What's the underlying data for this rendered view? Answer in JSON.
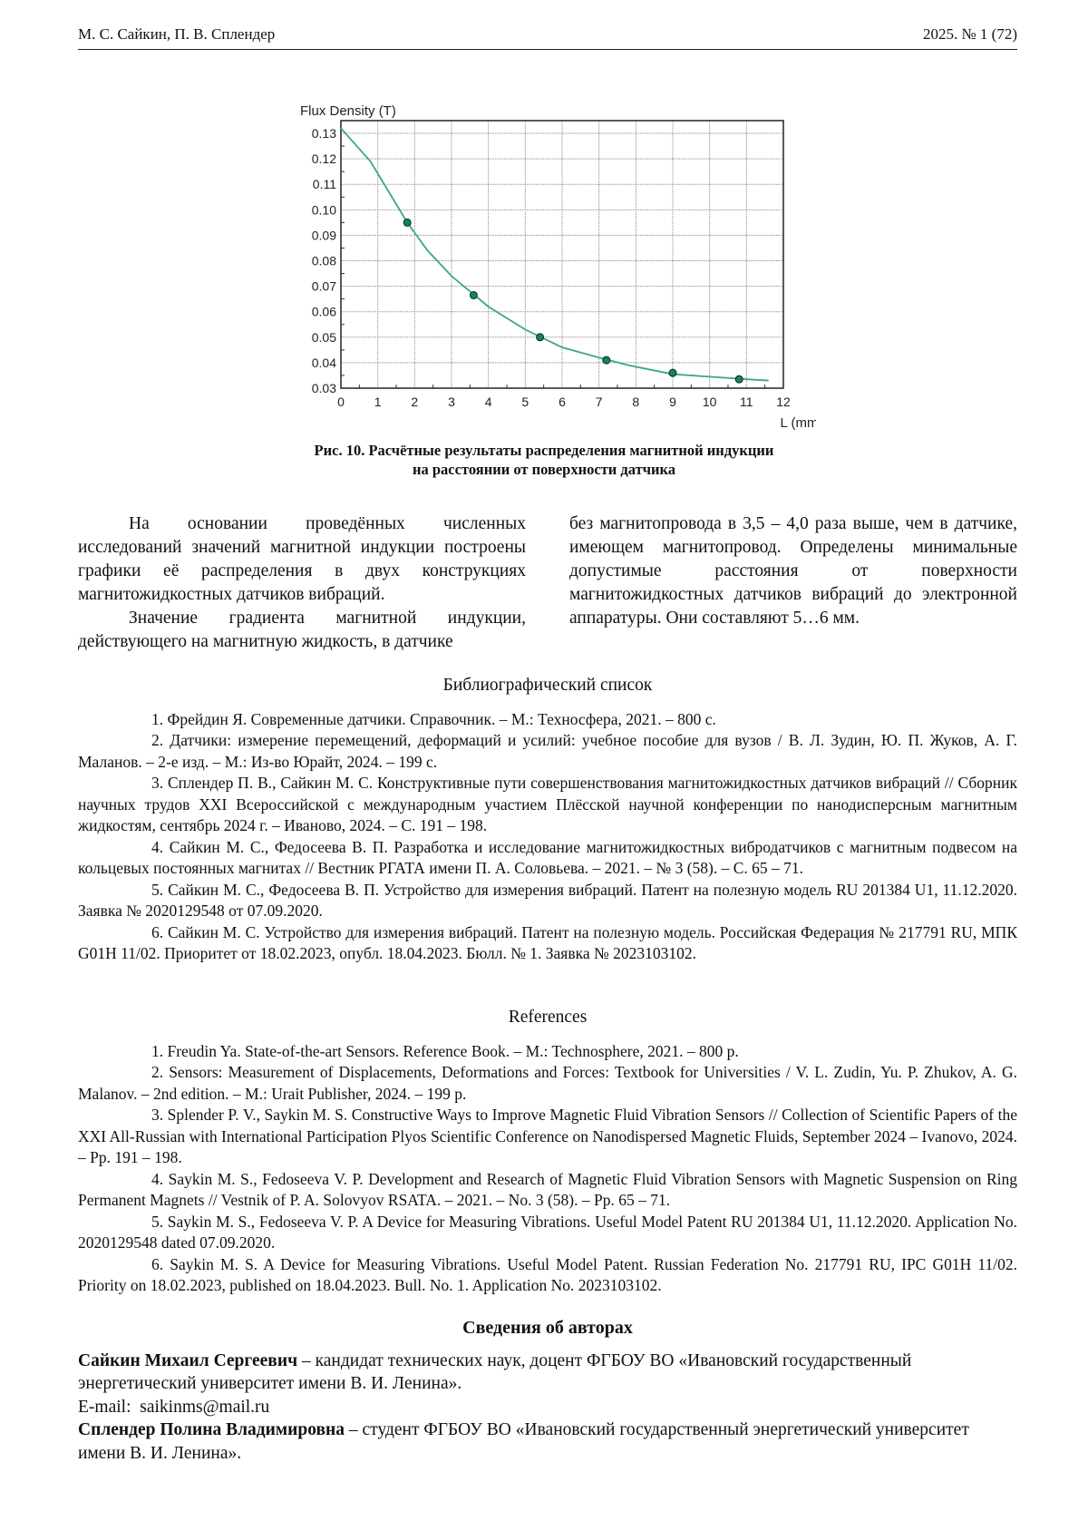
{
  "header": {
    "authors": "М. С. Сайкин,  П. В. Сплендер",
    "issue": "2025.   № 1 (72)"
  },
  "chart_data": {
    "type": "line",
    "title": "",
    "ylabel": "Flux Density (T)",
    "xlabel": "L (mm)",
    "xlim": [
      0,
      12
    ],
    "ylim": [
      0.03,
      0.135
    ],
    "xticks": [
      "0",
      "1",
      "2",
      "3",
      "4",
      "5",
      "6",
      "7",
      "8",
      "9",
      "10",
      "11",
      "12"
    ],
    "yticks": [
      "0.03",
      "0.04",
      "0.05",
      "0.06",
      "0.07",
      "0.08",
      "0.09",
      "0.10",
      "0.11",
      "0.12",
      "0.13"
    ],
    "grid": true,
    "line_color": "#3aaa78",
    "marker_color": "#0e8a4a",
    "series": [
      {
        "kind": "line",
        "x": [
          0,
          0.8,
          1.8,
          2.35,
          3.0,
          4.0,
          5.0,
          6.0,
          7.0,
          7.8,
          9.0,
          10.0,
          11.0,
          11.6
        ],
        "y": [
          0.132,
          0.119,
          0.095,
          0.084,
          0.074,
          0.062,
          0.053,
          0.046,
          0.042,
          0.039,
          0.0355,
          0.0345,
          0.0335,
          0.033
        ]
      },
      {
        "kind": "markers",
        "x": [
          1.8,
          3.6,
          5.4,
          7.2,
          9.0,
          10.8
        ],
        "y": [
          0.095,
          0.0665,
          0.05,
          0.041,
          0.036,
          0.0335
        ]
      }
    ]
  },
  "caption": {
    "line1": "Рис. 10. Расчётные результаты распределения магнитной индукции",
    "line2": "на расстоянии от поверхности датчика"
  },
  "body": {
    "p1": "На основании проведённых численных исследований значений магнитной индукции построены графики её распределения в двух конструкциях магнитожидкостных датчиков вибраций.",
    "p2": "Значение градиента магнитной индукции, действующего на магнитную жидкость, в датчике без магнитопровода в 3,5 – 4,0 раза выше, чем в датчике, имеющем магнитопровод. Определены минимальные допустимые расстояния от поверхности магнитожидкостных датчиков вибраций до электронной аппаратуры. Они составляют 5…6 мм.",
    "p2a": "Значение градиента магнитной индукции, действующего на магнитную жидкость, в датчике",
    "p2b": "без магнитопровода в 3,5 – 4,0 раза выше, чем в датчике, имеющем магнитопровод. Определены минимальные допустимые расстояния от поверхности магнитожидкостных датчиков вибраций до электронной аппаратуры. Они составляют 5…6 мм."
  },
  "bibliography": {
    "title": "Библиографический список",
    "items": [
      "1.  Фрейдин Я. Современные датчики. Справочник. – М.: Техносфера, 2021. – 800 с.",
      "2.  Датчики: измерение перемещений, деформаций и усилий: учебное пособие для вузов / В. Л. Зудин, Ю. П. Жуков, А. Г. Маланов. – 2-е изд. – М.: Из-во Юрайт, 2024. – 199 с.",
      "3.  Сплендер П. В., Сайкин М. С. Конструктивные пути совершенствования магнитожидкостных датчиков вибраций // Сборник научных трудов XXI Всероссийской с международным участием Плёсской научной конференции по нанодисперсным магнитным жидкостям, сентябрь 2024 г. – Иваново, 2024. – С. 191 – 198.",
      "4.  Сайкин М. С., Федосеева В. П. Разработка и исследование магнитожидкостных вибродатчиков с магнитным подвесом на кольцевых постоянных магнитах // Вестник РГАТА имени П. А. Соловьева. – 2021. – № 3 (58). – С. 65 – 71.",
      "5.  Сайкин М. С., Федосеева В. П. Устройство для измерения вибраций. Патент на полезную модель RU 201384 U1, 11.12.2020. Заявка № 2020129548 от 07.09.2020.",
      "6.  Сайкин М. С. Устройство для измерения вибраций. Патент на полезную модель. Российская Федерация № 217791 RU, МПК G01H 11/02. Приоритет от 18.02.2023, опубл. 18.04.2023. Бюлл. № 1. Заявка № 2023103102."
    ]
  },
  "references": {
    "title": "References",
    "items": [
      "1.  Freudin Ya. State-of-the-art Sensors. Reference Book. – M.: Technosphere, 2021. – 800 p.",
      "2.  Sensors: Measurement of Displacements, Deformations and Forces: Textbook for Universities / V. L. Zudin, Yu. P. Zhukov, A. G. Malanov. – 2nd edition. – M.: Urait Publisher, 2024. – 199 p.",
      "3.  Splender P. V., Saykin M. S. Constructive Ways to Improve Magnetic Fluid Vibration Sensors // Collection of Scientific Papers of the XXI All-Russian with International Participation Plyos Scientific Conference on Nanodispersed Magnetic Fluids, September 2024 – Ivanovo, 2024. – Pp. 191 – 198.",
      "4.  Saykin M. S., Fedoseeva V. P. Development and Research of Magnetic Fluid Vibration Sensors with Magnetic Suspension on Ring Permanent Magnets // Vestnik of P. A. Solovyov RSATA. – 2021. – No. 3 (58). – Pp. 65 – 71.",
      "5.  Saykin M. S., Fedoseeva V. P. A Device for Measuring Vibrations. Useful Model Patent RU 201384 U1, 11.12.2020. Application No. 2020129548 dated 07.09.2020.",
      "6.  Saykin M. S.  A Device for Measuring Vibrations. Useful Model Patent. Russian Federation No. 217791 RU, IPC G01H 11/02. Priority on 18.02.2023, published on 18.04.2023. Bull. No. 1. Application No. 2023103102."
    ]
  },
  "authors": {
    "title": "Сведения об авторах",
    "a1_name": "Сайкин Михаил Сергеевич",
    "a1_text": " – кандидат технических наук, доцент ФГБОУ ВО «Ивановский государственный энергетический университет имени В. И. Ленина».",
    "a1_email_label": "E-mail:  ",
    "a1_email": "saikinms@mail.ru",
    "a2_name": "Сплендер Полина Владимировна",
    "a2_text": " – студент ФГБОУ ВО «Ивановский государственный энергетический университет имени В. И. Ленина»."
  }
}
